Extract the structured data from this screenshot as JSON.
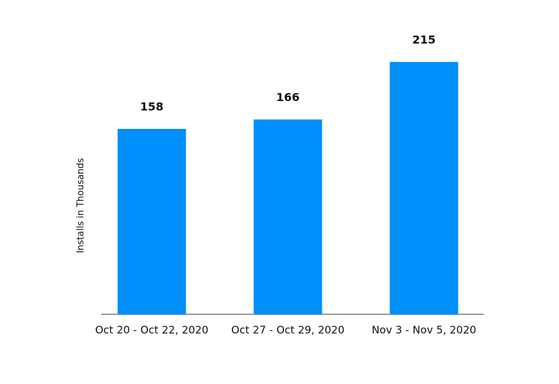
{
  "chart_data": {
    "type": "bar",
    "y_label": "Installs in Thousands",
    "categories": [
      "Oct 20 - Oct 22, 2020",
      "Oct 27 - Oct 29, 2020",
      "Nov 3 - Nov 5, 2020"
    ],
    "values": [
      158,
      166,
      215
    ],
    "color": "#008ffb",
    "ylim": [
      0,
      250
    ]
  }
}
